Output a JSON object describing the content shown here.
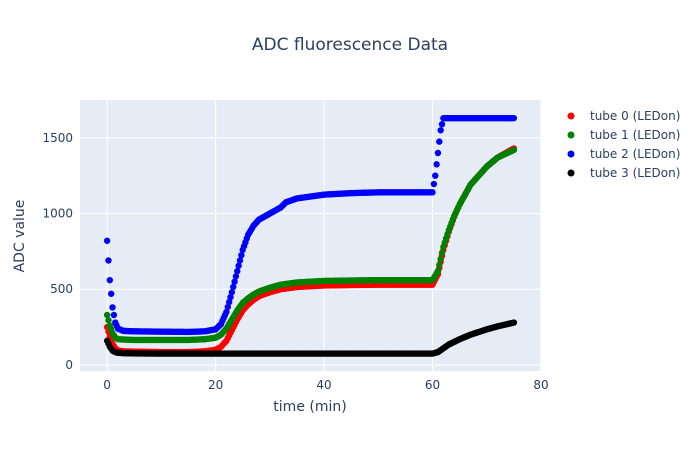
{
  "chart_data": {
    "type": "scatter",
    "title": "ADC fluorescence Data",
    "xlabel": "time (min)",
    "ylabel": "ADC value",
    "xlim": [
      -5,
      80
    ],
    "ylim": [
      -40,
      1750
    ],
    "x_ticks": [
      "0",
      "20",
      "40",
      "60",
      "80"
    ],
    "y_ticks": [
      "0",
      "500",
      "1000",
      "1500"
    ],
    "x_tick_values": [
      0,
      20,
      40,
      60,
      80
    ],
    "y_tick_values": [
      0,
      500,
      1000,
      1500
    ],
    "grid": true,
    "plot_background": "#e5ecf6",
    "legend_position": "right",
    "series": [
      {
        "name": "tube 0 (LEDon)",
        "color": "#ff0000",
        "x": [
          0,
          0.5,
          1,
          1.5,
          2,
          3,
          5,
          10,
          15,
          18,
          20,
          21,
          22,
          23,
          24,
          25,
          26,
          27,
          28,
          30,
          32,
          35,
          40,
          45,
          50,
          55,
          60,
          61,
          62,
          63,
          64,
          65,
          67,
          70,
          72,
          75
        ],
        "y": [
          250,
          190,
          140,
          110,
          95,
          90,
          88,
          85,
          85,
          90,
          100,
          120,
          160,
          230,
          300,
          360,
          400,
          430,
          455,
          480,
          500,
          515,
          525,
          528,
          530,
          530,
          530,
          600,
          760,
          880,
          980,
          1060,
          1190,
          1310,
          1370,
          1430
        ]
      },
      {
        "name": "tube 1 (LEDon)",
        "color": "#008000",
        "x": [
          0,
          0.5,
          1,
          1.5,
          2,
          3,
          5,
          10,
          15,
          18,
          20,
          21,
          22,
          23,
          24,
          25,
          26,
          27,
          28,
          30,
          32,
          35,
          40,
          45,
          50,
          55,
          60,
          61,
          62,
          63,
          64,
          65,
          67,
          70,
          72,
          75
        ],
        "y": [
          330,
          260,
          210,
          180,
          170,
          168,
          165,
          165,
          165,
          170,
          180,
          200,
          240,
          300,
          360,
          410,
          440,
          465,
          485,
          510,
          530,
          545,
          555,
          558,
          560,
          560,
          560,
          620,
          780,
          890,
          985,
          1060,
          1190,
          1310,
          1370,
          1420
        ]
      },
      {
        "name": "tube 2 (LEDon)",
        "color": "#0000ff",
        "x": [
          0,
          0.5,
          1,
          1.5,
          2,
          3,
          5,
          10,
          15,
          18,
          20,
          21,
          22,
          23,
          24,
          25,
          26,
          27,
          28,
          30,
          32,
          33,
          35,
          40,
          45,
          50,
          55,
          60,
          60.5,
          61,
          61.5,
          62,
          63,
          65,
          70,
          75
        ],
        "y": [
          820,
          560,
          380,
          280,
          240,
          225,
          222,
          220,
          218,
          222,
          235,
          270,
          350,
          480,
          620,
          760,
          860,
          920,
          960,
          1000,
          1040,
          1075,
          1100,
          1125,
          1135,
          1140,
          1140,
          1140,
          1250,
          1400,
          1550,
          1630,
          1630,
          1630,
          1630,
          1630
        ]
      },
      {
        "name": "tube 3 (LEDon)",
        "color": "#000000",
        "x": [
          0,
          0.5,
          1,
          1.5,
          2,
          3,
          5,
          10,
          20,
          30,
          40,
          50,
          55,
          60,
          61,
          62,
          63,
          65,
          67,
          70,
          72,
          75
        ],
        "y": [
          160,
          120,
          95,
          85,
          80,
          78,
          76,
          75,
          75,
          75,
          75,
          75,
          75,
          75,
          85,
          110,
          135,
          170,
          200,
          235,
          255,
          280
        ]
      }
    ]
  }
}
